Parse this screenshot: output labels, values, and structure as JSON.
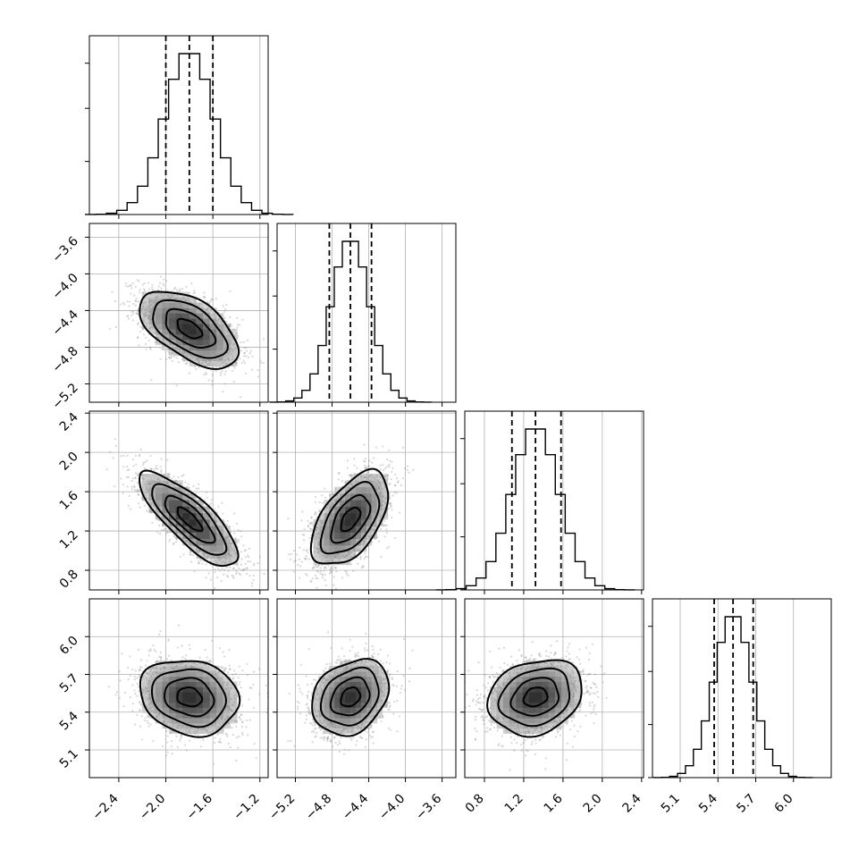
{
  "chart_data": {
    "type": "corner",
    "parameters": [
      {
        "index": 0,
        "mean": -1.8,
        "sd": 0.21,
        "quantiles": [
          -2.0,
          -1.8,
          -1.6
        ],
        "range": [
          -2.65,
          -1.13
        ],
        "ticks": [
          -2.4,
          -2.0,
          -1.6,
          -1.2
        ],
        "tick_labels": [
          "−2.4",
          "−2.0",
          "−1.6",
          "−1.2"
        ]
      },
      {
        "index": 1,
        "mean": -4.6,
        "sd": 0.21,
        "quantiles": [
          -4.83,
          -4.6,
          -4.37
        ],
        "range": [
          -5.4,
          -3.45
        ],
        "ticks": [
          -5.2,
          -4.8,
          -4.4,
          -4.0,
          -3.6
        ],
        "tick_labels": [
          "−5.2",
          "−4.8",
          "−4.4",
          "−4.0",
          "−3.6"
        ]
      },
      {
        "index": 2,
        "mean": 1.32,
        "sd": 0.24,
        "quantiles": [
          1.08,
          1.32,
          1.58
        ],
        "range": [
          0.6,
          2.42
        ],
        "ticks": [
          0.8,
          1.2,
          1.6,
          2.0,
          2.4
        ],
        "tick_labels": [
          "0.8",
          "1.2",
          "1.6",
          "2.0",
          "2.4"
        ]
      },
      {
        "index": 3,
        "mean": 5.52,
        "sd": 0.15,
        "quantiles": [
          5.37,
          5.52,
          5.68
        ],
        "range": [
          4.88,
          6.3
        ],
        "ticks": [
          5.1,
          5.4,
          5.7,
          6.0
        ],
        "tick_labels": [
          "5.1",
          "5.4",
          "5.7",
          "6.0"
        ]
      }
    ],
    "correlations": [
      {
        "pair": [
          0,
          1
        ],
        "r": -0.55
      },
      {
        "pair": [
          0,
          2
        ],
        "r": -0.8
      },
      {
        "pair": [
          1,
          2
        ],
        "r": 0.55
      },
      {
        "pair": [
          0,
          3
        ],
        "r": -0.15
      },
      {
        "pair": [
          1,
          3
        ],
        "r": 0.25
      },
      {
        "pair": [
          2,
          3
        ],
        "r": 0.2
      }
    ],
    "grid": true,
    "histogram_bins": 20,
    "quantile_lines": "dashed",
    "contour_levels_sigma": [
      0.5,
      1.0,
      1.5,
      2.0
    ]
  }
}
